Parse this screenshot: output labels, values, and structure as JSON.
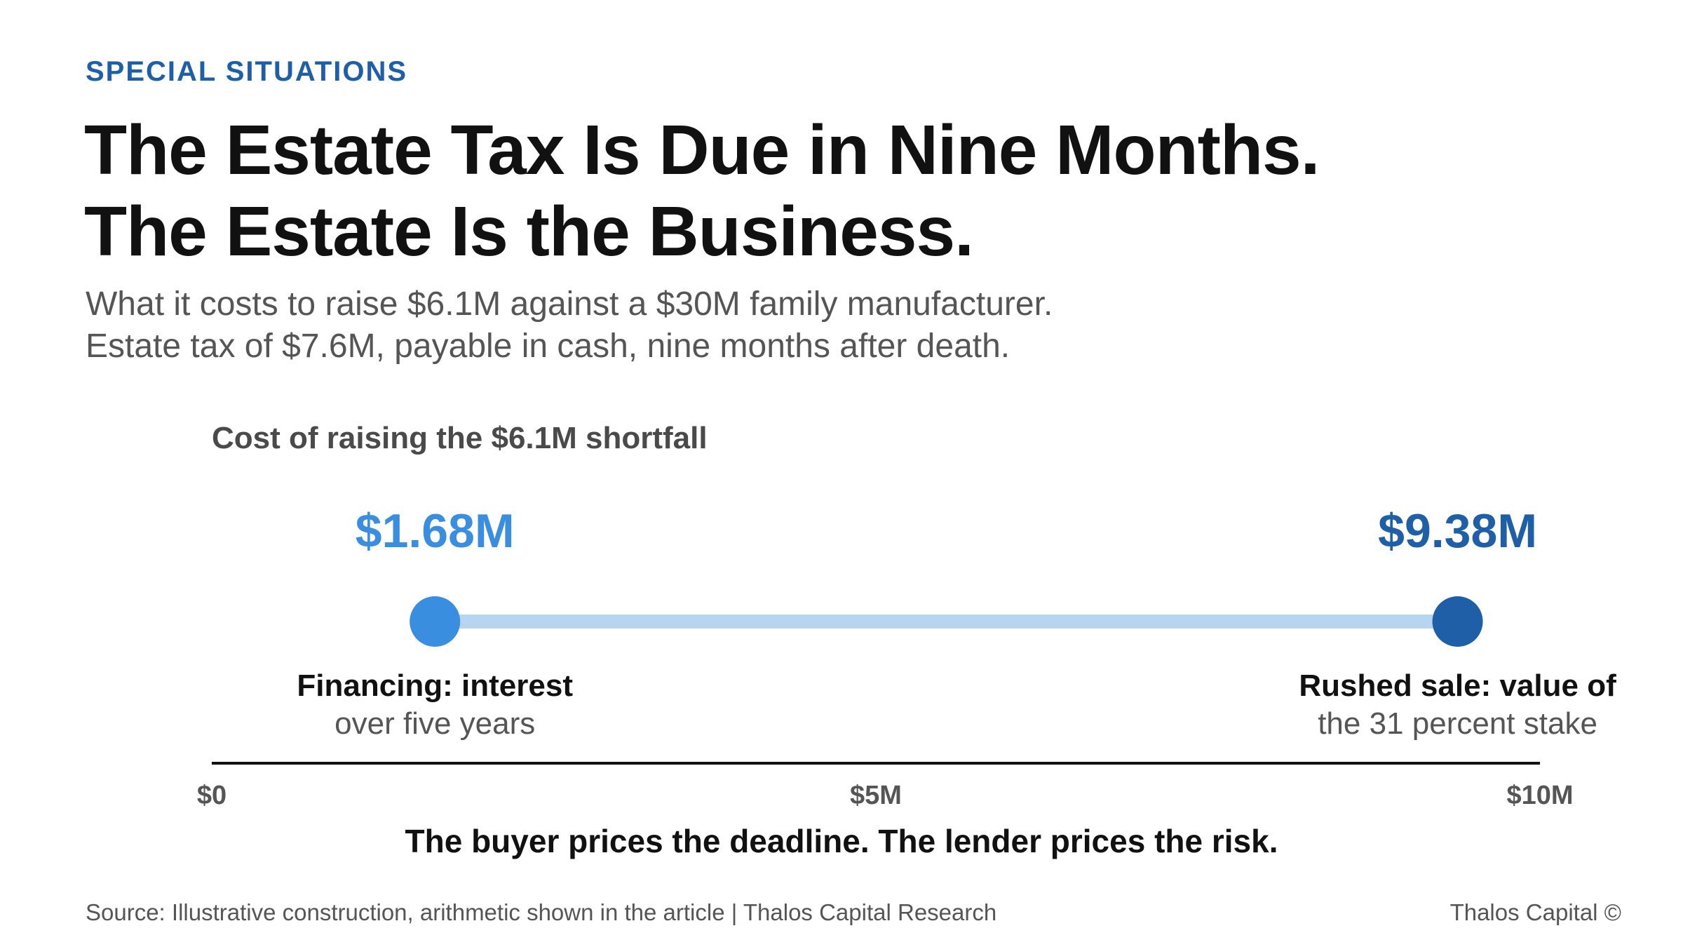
{
  "header": {
    "kicker": "SPECIAL SITUATIONS",
    "title_line1": "The Estate Tax Is Due in Nine Months.",
    "title_line2": "The Estate Is the Business.",
    "subtitle_line1": "What it costs to raise $6.1M against a $30M family manufacturer.",
    "subtitle_line2": "Estate tax of $7.6M, payable in cash, nine months after death."
  },
  "chart_data": {
    "type": "dumbbell",
    "title": "Cost of raising the $6.1M shortfall",
    "xlim": [
      0,
      10
    ],
    "x_ticks": [
      {
        "value": 0,
        "label": "$0"
      },
      {
        "value": 5,
        "label": "$5M"
      },
      {
        "value": 10,
        "label": "$10M"
      }
    ],
    "points": [
      {
        "value": 1.68,
        "value_label": "$1.68M",
        "label_bold": "Financing: interest",
        "label_sub": "over five years",
        "color": "#3a8ee0"
      },
      {
        "value": 9.38,
        "value_label": "$9.38M",
        "label_bold": "Rushed sale: value of",
        "label_sub": "the 31 percent stake",
        "color": "#1f5fa8"
      }
    ],
    "connector_color": "#b7d4f1"
  },
  "takeaway": "The buyer prices the deadline. The lender prices the risk.",
  "footer": {
    "source": "Source: Illustrative construction, arithmetic shown in the article | Thalos Capital Research",
    "brand": "Thalos Capital ©"
  }
}
